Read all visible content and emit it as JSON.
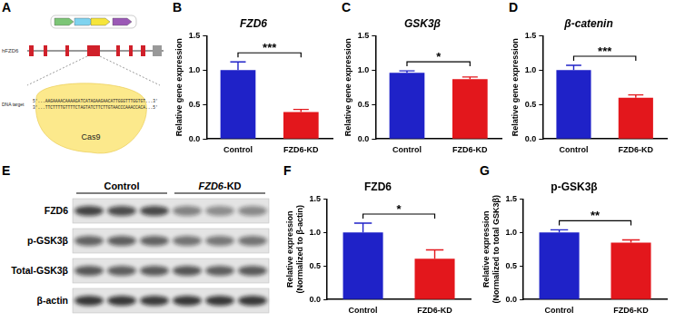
{
  "chart_data": [
    {
      "type": "bar",
      "panel": "B",
      "title": "FZD6",
      "ylabel": "Relative gene expression",
      "categories": [
        "Control",
        "FZD6-KD"
      ],
      "values": [
        1.0,
        0.39
      ],
      "error": [
        0.12,
        0.04
      ],
      "colors": [
        "#1f22c8",
        "#e3171c"
      ],
      "ylim": [
        0,
        1.5
      ],
      "yticks": [
        {
          "value": 0,
          "label": "0.0"
        },
        {
          "value": 0.5,
          "label": "0.5"
        },
        {
          "value": 1,
          "label": "1.0"
        },
        {
          "value": 1.5,
          "label": "1.5"
        }
      ],
      "grid": false,
      "annotations": [
        {
          "text": "***",
          "from": "Control",
          "to": "FZD6-KD"
        }
      ]
    },
    {
      "type": "bar",
      "panel": "C",
      "title": "GSK3β",
      "ylabel": "Relative gene expression",
      "categories": [
        "Control",
        "FZD6-KD"
      ],
      "values": [
        0.96,
        0.87
      ],
      "error": [
        0.03,
        0.03
      ],
      "colors": [
        "#1f22c8",
        "#e3171c"
      ],
      "ylim": [
        0,
        1.5
      ],
      "yticks": [
        {
          "value": 0,
          "label": "0.0"
        },
        {
          "value": 0.5,
          "label": "0.5"
        },
        {
          "value": 1,
          "label": "1.0"
        },
        {
          "value": 1.5,
          "label": "1.5"
        }
      ],
      "grid": false,
      "annotations": [
        {
          "text": "*",
          "from": "Control",
          "to": "FZD6-KD"
        }
      ]
    },
    {
      "type": "bar",
      "panel": "D",
      "title": "β-catenin",
      "ylabel": "Relative gene expression",
      "categories": [
        "Control",
        "FZD6-KD"
      ],
      "values": [
        1.0,
        0.6
      ],
      "error": [
        0.07,
        0.04
      ],
      "colors": [
        "#1f22c8",
        "#e3171c"
      ],
      "ylim": [
        0,
        1.5
      ],
      "yticks": [
        {
          "value": 0,
          "label": "0.0"
        },
        {
          "value": 0.5,
          "label": "0.5"
        },
        {
          "value": 1,
          "label": "1.0"
        },
        {
          "value": 1.5,
          "label": "1.5"
        }
      ],
      "grid": false,
      "annotations": [
        {
          "text": "***",
          "from": "Control",
          "to": "FZD6-KD"
        }
      ]
    },
    {
      "type": "bar",
      "panel": "F",
      "title": "FZD6",
      "ylabel": [
        "Relative expression",
        "(Normalized to β-actin)"
      ],
      "categories": [
        "Control",
        "FZD6-KD"
      ],
      "values": [
        1.0,
        0.61
      ],
      "error": [
        0.14,
        0.13
      ],
      "colors": [
        "#1f22c8",
        "#e3171c"
      ],
      "ylim": [
        0,
        1.5
      ],
      "yticks": [
        {
          "value": 0,
          "label": "0.0"
        },
        {
          "value": 0.5,
          "label": "0.5"
        },
        {
          "value": 1,
          "label": "1.0"
        },
        {
          "value": 1.5,
          "label": "1.5"
        }
      ],
      "grid": false,
      "annotations": [
        {
          "text": "*",
          "from": "Control",
          "to": "FZD6-KD"
        }
      ]
    },
    {
      "type": "bar",
      "panel": "G",
      "title": "p-GSK3β",
      "ylabel": [
        "Relative expression",
        "(Normalized to total GSK3β)"
      ],
      "categories": [
        "Control",
        "FZD6-KD"
      ],
      "values": [
        1.0,
        0.85
      ],
      "error": [
        0.04,
        0.04
      ],
      "colors": [
        "#1f22c8",
        "#e3171c"
      ],
      "ylim": [
        0,
        1.5
      ],
      "yticks": [
        {
          "value": 0,
          "label": "0.0"
        },
        {
          "value": 0.5,
          "label": "0.5"
        },
        {
          "value": 1,
          "label": "1.0"
        },
        {
          "value": 1.5,
          "label": "1.5"
        }
      ],
      "grid": false,
      "annotations": [
        {
          "text": "**",
          "from": "Control",
          "to": "FZD6-KD"
        }
      ]
    }
  ],
  "diagram": {
    "panel": "A",
    "gene": "hFZD6",
    "protein": "Cas9",
    "target_label": "DNA target",
    "seq_top": "5'...AAGAAAACAAAAGATCATAGAAGAACATTGGGTTTGGTGT...3'",
    "seq_bottom": "3'...TTCTTTTGTTTTCTAGTATCTTCTTGTAACCCAAACCACA...5'"
  },
  "blot": {
    "panel": "E",
    "groups": [
      "Control",
      "FZD6-KD"
    ],
    "rows": [
      "FZD6",
      "p-GSK3β",
      "Total-GSK3β",
      "β-actin"
    ]
  }
}
